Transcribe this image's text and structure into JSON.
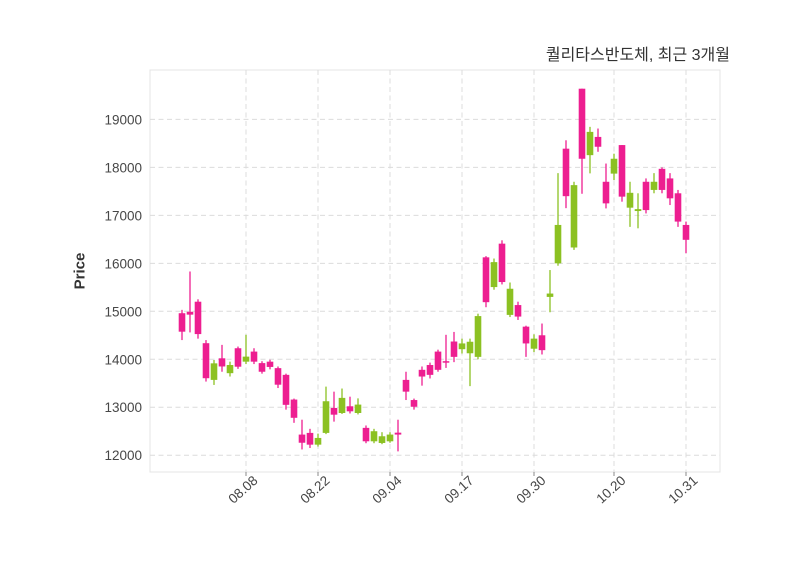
{
  "chart": {
    "title": "퀄리타스반도체, 최근 3개월",
    "ylabel": "Price"
  },
  "chart_data": {
    "type": "candlestick",
    "title": "퀄리타스반도체, 최근 3개월",
    "ylabel": "Price",
    "xlabel": "",
    "grid": "dashed",
    "legend": "none",
    "ylim": [
      11650,
      20030
    ],
    "y_ticks": [
      12000,
      13000,
      14000,
      15000,
      16000,
      17000,
      18000,
      19000
    ],
    "x_tick_labels": [
      "08.08",
      "08.22",
      "09.04",
      "09.17",
      "09.30",
      "10.20",
      "10.31"
    ],
    "x_tick_indices": [
      8,
      17,
      26,
      35,
      44,
      54,
      63
    ],
    "up_color": "#ed1e90",
    "down_color": "#8cc122",
    "grid_color": "#dcdcdc",
    "border_color": "#e4e4e4",
    "tick_color": "#888888",
    "axis_text_color": "#474747",
    "ohlc": [
      [
        14575,
        15030,
        14400,
        14960
      ],
      [
        14930,
        15830,
        14560,
        14990
      ],
      [
        14525,
        15250,
        14430,
        15200
      ],
      [
        13605,
        14400,
        13535,
        14335
      ],
      [
        13915,
        13985,
        13465,
        13570
      ],
      [
        13850,
        14300,
        13740,
        14020
      ],
      [
        13880,
        13950,
        13640,
        13710
      ],
      [
        13845,
        14265,
        13800,
        14230
      ],
      [
        14055,
        14510,
        13900,
        13950
      ],
      [
        13950,
        14230,
        13900,
        14160
      ],
      [
        13740,
        13960,
        13700,
        13920
      ],
      [
        13840,
        13990,
        13790,
        13950
      ],
      [
        13470,
        13850,
        13400,
        13815
      ],
      [
        13050,
        13700,
        12950,
        13675
      ],
      [
        12780,
        13180,
        12675,
        13160
      ],
      [
        12260,
        12740,
        12120,
        12430
      ],
      [
        12220,
        12550,
        12150,
        12465
      ],
      [
        12360,
        12450,
        12180,
        12220
      ],
      [
        13125,
        13430,
        12440,
        12465
      ],
      [
        12845,
        13325,
        12700,
        12985
      ],
      [
        13195,
        13390,
        12860,
        12880
      ],
      [
        12915,
        13220,
        12870,
        13020
      ],
      [
        13055,
        13185,
        12850,
        12880
      ],
      [
        12290,
        12620,
        12250,
        12570
      ],
      [
        12500,
        12550,
        12250,
        12290
      ],
      [
        12395,
        12480,
        12230,
        12255
      ],
      [
        12430,
        12480,
        12260,
        12290
      ],
      [
        12430,
        12740,
        12080,
        12470
      ],
      [
        13325,
        13740,
        13150,
        13570
      ],
      [
        13010,
        13180,
        12950,
        13150
      ],
      [
        13640,
        13850,
        13450,
        13780
      ],
      [
        13675,
        13930,
        13600,
        13880
      ],
      [
        13780,
        14200,
        13740,
        14160
      ],
      [
        13930,
        14510,
        13820,
        13960
      ],
      [
        14050,
        14570,
        13940,
        14370
      ],
      [
        14330,
        14430,
        14120,
        14210
      ],
      [
        14365,
        14430,
        13440,
        14125
      ],
      [
        14900,
        14950,
        14000,
        14050
      ],
      [
        15190,
        16150,
        15085,
        16125
      ],
      [
        16025,
        16100,
        15450,
        15505
      ],
      [
        15610,
        16480,
        15560,
        16410
      ],
      [
        15470,
        15600,
        14880,
        14925
      ],
      [
        14890,
        15200,
        14820,
        15130
      ],
      [
        14330,
        14700,
        14050,
        14680
      ],
      [
        14430,
        14520,
        14150,
        14220
      ],
      [
        14190,
        14745,
        14100,
        14500
      ],
      [
        15370,
        15860,
        14980,
        15300
      ],
      [
        16800,
        17880,
        15950,
        16000
      ],
      [
        17400,
        18565,
        17150,
        18390
      ],
      [
        17630,
        17700,
        16280,
        16330
      ],
      [
        18180,
        19640,
        17450,
        19640
      ],
      [
        18740,
        18845,
        17875,
        18255
      ],
      [
        18430,
        18810,
        18325,
        18635
      ],
      [
        17250,
        18080,
        17145,
        17700
      ],
      [
        18180,
        18285,
        17735,
        17870
      ],
      [
        17390,
        18465,
        17285,
        18465
      ],
      [
        17470,
        17700,
        16760,
        17160
      ],
      [
        17130,
        17460,
        16730,
        17090
      ],
      [
        17110,
        17770,
        17040,
        17700
      ],
      [
        17700,
        17880,
        17460,
        17530
      ],
      [
        17530,
        18000,
        17460,
        17970
      ],
      [
        17355,
        17880,
        17215,
        17770
      ],
      [
        16870,
        17530,
        16760,
        17460
      ],
      [
        16490,
        16870,
        16210,
        16800
      ]
    ]
  }
}
